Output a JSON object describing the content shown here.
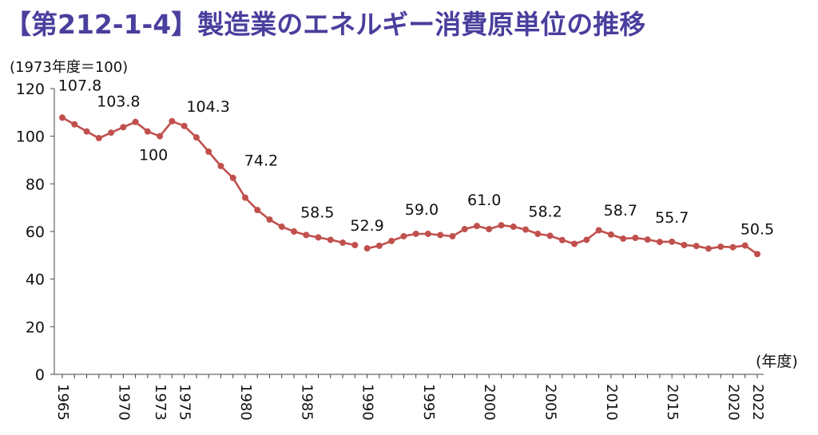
{
  "title": "【第212-1-4】製造業のエネルギー消費原単位の推移",
  "chart_data": {
    "type": "line",
    "ylabel": "(1973年度＝100)",
    "xlabel": "(年度)",
    "ylim": [
      0,
      120
    ],
    "yticks": [
      0,
      20,
      40,
      60,
      80,
      100,
      120
    ],
    "xrange": [
      1965,
      2022
    ],
    "xticks": [
      "1965",
      "1970",
      "1973",
      "1975",
      "1980",
      "1985",
      "1990",
      "1995",
      "2000",
      "2005",
      "2010",
      "2015",
      "2020",
      "2022"
    ],
    "color": "#c0504d",
    "series": [
      {
        "segments": [
          {
            "x": [
              1965,
              1966,
              1967,
              1968,
              1969,
              1970,
              1971,
              1972,
              1973,
              1974,
              1975,
              1976,
              1977,
              1978,
              1979,
              1980,
              1981,
              1982,
              1983,
              1984,
              1985,
              1986,
              1987,
              1988,
              1989
            ],
            "y": [
              107.8,
              105,
              102,
              99.2,
              101.5,
              103.8,
              106,
              102,
              100,
              106.3,
              104.3,
              99.5,
              93.5,
              87.5,
              82.5,
              74.2,
              69,
              65,
              62,
              60,
              58.5,
              57.5,
              56.5,
              55.3,
              54.3
            ]
          },
          {
            "x": [
              1990,
              1991,
              1992,
              1993,
              1994,
              1995,
              1996,
              1997,
              1998,
              1999,
              2000,
              2001,
              2002,
              2003,
              2004,
              2005,
              2006,
              2007,
              2008,
              2009,
              2010,
              2011,
              2012,
              2013,
              2014,
              2015,
              2016,
              2017,
              2018,
              2019,
              2020,
              2021,
              2022
            ],
            "y": [
              52.9,
              54,
              56,
              58,
              59,
              59.0,
              58.5,
              58,
              61,
              62.3,
              61.0,
              62.6,
              62,
              60.8,
              59,
              58.2,
              56.4,
              54.8,
              56.5,
              60.5,
              58.7,
              57,
              57.3,
              56.6,
              55.6,
              55.7,
              54.3,
              53.9,
              52.8,
              53.6,
              53.4,
              54.1,
              50.5
            ]
          }
        ]
      }
    ],
    "data_labels": [
      {
        "x": 1965,
        "y": 107.8,
        "text": "107.8"
      },
      {
        "x": 1970,
        "y": 103.8,
        "text": "103.8"
      },
      {
        "x": 1973,
        "y": 100,
        "text": "100"
      },
      {
        "x": 1975,
        "y": 104.3,
        "text": "104.3"
      },
      {
        "x": 1980,
        "y": 74.2,
        "text": "74.2"
      },
      {
        "x": 1985,
        "y": 58.5,
        "text": "58.5"
      },
      {
        "x": 1990,
        "y": 52.9,
        "text": "52.9"
      },
      {
        "x": 1995,
        "y": 59.0,
        "text": "59.0"
      },
      {
        "x": 2000,
        "y": 61.0,
        "text": "61.0"
      },
      {
        "x": 2005,
        "y": 58.2,
        "text": "58.2"
      },
      {
        "x": 2010,
        "y": 58.7,
        "text": "58.7"
      },
      {
        "x": 2015,
        "y": 55.7,
        "text": "55.7"
      },
      {
        "x": 2022,
        "y": 50.5,
        "text": "50.5"
      }
    ]
  }
}
